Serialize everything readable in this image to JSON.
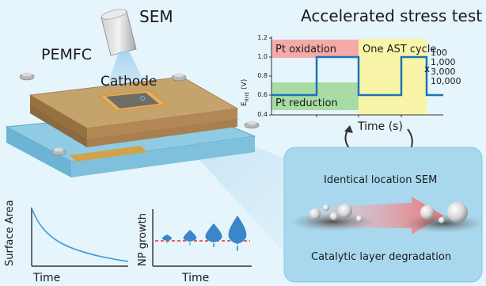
{
  "sem_label": "SEM",
  "pemfc_label": "PEMFC",
  "cathode_label": "Cathode",
  "ast": {
    "title": "Accelerated stress test",
    "y_axis_label": "E",
    "y_axis_sub": "RHE",
    "y_axis_unit": " (V)",
    "y_ticks": [
      "1.2",
      "1.0",
      "0.8",
      "0.6",
      "0.4"
    ],
    "x_label": "Time (s)",
    "pt_oxidation": "Pt oxidation",
    "pt_reduction": "Pt reduction",
    "one_cycle": "One AST cycle",
    "multiplier": "x",
    "cycle_counts": [
      "100",
      "1,000",
      "3,000",
      "10,000"
    ],
    "colors": {
      "oxidation": "#f4aaa8",
      "reduction": "#a9dca4",
      "cycle": "#f8f5a8",
      "waveform": "#1e72b8"
    }
  },
  "identical_location": "Identical location SEM",
  "catalytic_degradation": "Catalytic layer degradation",
  "surface_plot": {
    "ylabel": "Surface Area",
    "xlabel": "Time"
  },
  "np_plot": {
    "ylabel": "NP growth",
    "xlabel": "Time"
  }
}
